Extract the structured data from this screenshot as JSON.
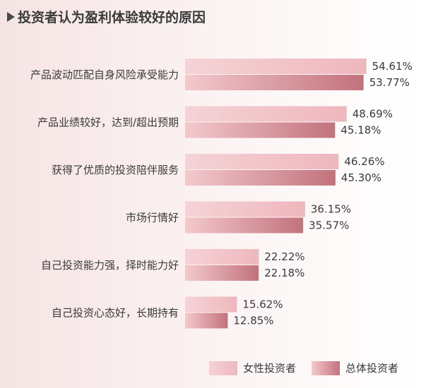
{
  "title": "投资者认为盈利体验较好的原因",
  "colors": {
    "female_light": "#f5d3d6",
    "female_dark": "#eeb7bd",
    "total_light": "#f3c9cd",
    "total_dark": "#c2727c"
  },
  "chart_data": {
    "type": "bar",
    "orientation": "horizontal",
    "title": "投资者认为盈利体验较好的原因",
    "categories": [
      "产品波动匹配自身风险承受能力",
      "产品业绩较好，达到/超出预期",
      "获得了优质的投资陪伴服务",
      "市场行情好",
      "自己投资能力强，择时能力好",
      "自己投资心态好，长期持有"
    ],
    "series": [
      {
        "name": "女性投资者",
        "values": [
          54.61,
          48.69,
          46.26,
          36.15,
          22.22,
          15.62
        ],
        "labels": [
          "54.61%",
          "48.69%",
          "46.26%",
          "36.15%",
          "22.22%",
          "15.62%"
        ]
      },
      {
        "name": "总体投资者",
        "values": [
          53.77,
          45.18,
          45.3,
          35.57,
          22.18,
          12.85
        ],
        "labels": [
          "53.77%",
          "45.18%",
          "45.30%",
          "35.57%",
          "22.18%",
          "12.85%"
        ]
      }
    ],
    "xlim": [
      0,
      100
    ],
    "grid": false,
    "legend_position": "bottom-right"
  }
}
